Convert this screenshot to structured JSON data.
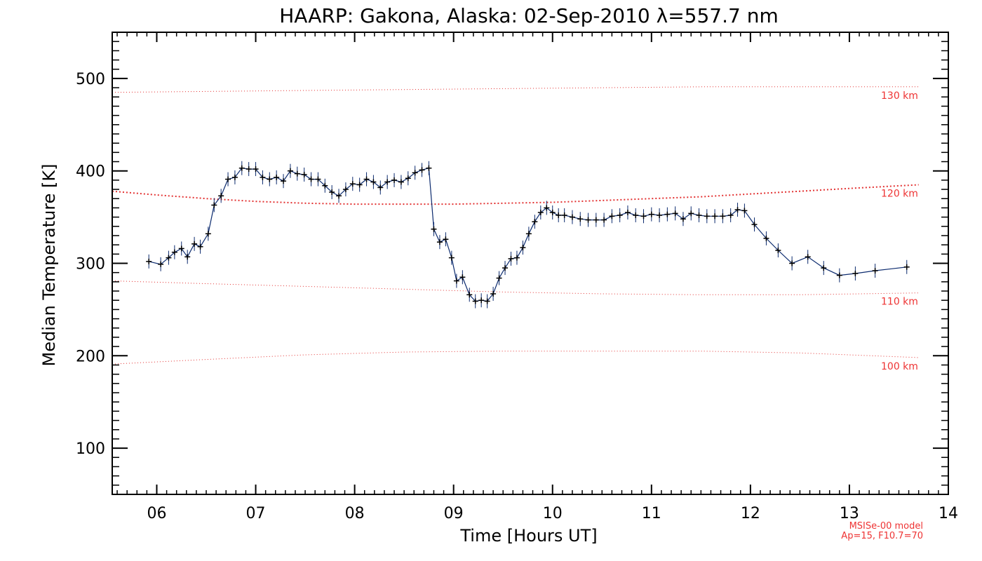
{
  "chart_data": {
    "type": "line",
    "title": "HAARP: Gakona,  Alaska: 02-Sep-2010 λ=557.7 nm",
    "xlabel": "Time [Hours UT]",
    "ylabel": "Median Temperature [K]",
    "xlim": [
      5.55,
      14.0
    ],
    "ylim": [
      50,
      550
    ],
    "x_ticks": [
      6,
      7,
      8,
      9,
      10,
      11,
      12,
      13,
      14
    ],
    "x_tick_labels": [
      "06",
      "07",
      "08",
      "09",
      "10",
      "11",
      "12",
      "13",
      "14"
    ],
    "y_ticks": [
      100,
      200,
      300,
      400,
      500
    ],
    "y_tick_labels": [
      "100",
      "200",
      "300",
      "400",
      "500"
    ],
    "grid": false,
    "colors": {
      "series": "#0b2a6e",
      "marker": "#000000",
      "model": "#e33333"
    },
    "series": [
      {
        "x": [
          5.92,
          6.04,
          6.12,
          6.18,
          6.25,
          6.31,
          6.38,
          6.44,
          6.52,
          6.58,
          6.65,
          6.72,
          6.79,
          6.86,
          6.93,
          7.0,
          7.07,
          7.14,
          7.21,
          7.28,
          7.35,
          7.42,
          7.49,
          7.56,
          7.63,
          7.7,
          7.77,
          7.84,
          7.91,
          7.98,
          8.05,
          8.12,
          8.19,
          8.26,
          8.33,
          8.4,
          8.47,
          8.54,
          8.61,
          8.68,
          8.75,
          8.8,
          8.86,
          8.92,
          8.98,
          9.03,
          9.09,
          9.16,
          9.22,
          9.28,
          9.34,
          9.4,
          9.46,
          9.52,
          9.58,
          9.64,
          9.7,
          9.76,
          9.82,
          9.88,
          9.94,
          10.0,
          10.06,
          10.12,
          10.2,
          10.28,
          10.36,
          10.44,
          10.52,
          10.6,
          10.68,
          10.76,
          10.84,
          10.92,
          11.0,
          11.08,
          11.16,
          11.24,
          11.32,
          11.4,
          11.48,
          11.56,
          11.64,
          11.72,
          11.8,
          11.87,
          11.94,
          12.04,
          12.16,
          12.28,
          12.42,
          12.58,
          12.74,
          12.9,
          13.06,
          13.26,
          13.58
        ],
        "y": [
          302,
          299,
          306,
          312,
          316,
          307,
          321,
          318,
          332,
          363,
          373,
          391,
          393,
          403,
          402,
          402,
          393,
          391,
          393,
          389,
          400,
          397,
          396,
          391,
          391,
          384,
          377,
          373,
          380,
          386,
          385,
          391,
          388,
          382,
          388,
          390,
          388,
          392,
          398,
          401,
          403,
          337,
          323,
          326,
          306,
          281,
          285,
          266,
          259,
          260,
          259,
          267,
          284,
          295,
          305,
          306,
          317,
          332,
          345,
          355,
          360,
          355,
          352,
          352,
          350,
          348,
          347,
          347,
          347,
          351,
          352,
          355,
          352,
          351,
          353,
          352,
          353,
          354,
          348,
          354,
          352,
          351,
          351,
          351,
          352,
          358,
          357,
          342,
          327,
          314,
          300,
          307,
          295,
          287,
          289,
          292,
          296
        ]
      }
    ],
    "model_curves": [
      {
        "label": "130 km",
        "x": [
          5.55,
          6.5,
          7.5,
          8.5,
          9.5,
          10.5,
          11.5,
          12.5,
          13.7
        ],
        "y": [
          485,
          486,
          487,
          488,
          489,
          490,
          491,
          491,
          491
        ]
      },
      {
        "label": "120 km",
        "x": [
          5.55,
          6.0,
          6.5,
          7.0,
          7.5,
          8.0,
          8.5,
          9.0,
          9.5,
          10.0,
          10.5,
          11.0,
          11.5,
          12.0,
          12.5,
          13.0,
          13.7
        ],
        "y": [
          378,
          374,
          370,
          367,
          365,
          364,
          364,
          364,
          365,
          366,
          368,
          370,
          372,
          375,
          378,
          381,
          385
        ]
      },
      {
        "label": "110 km",
        "x": [
          5.55,
          6.5,
          7.5,
          8.5,
          9.5,
          10.5,
          11.5,
          12.5,
          13.7
        ],
        "y": [
          281,
          278,
          275,
          272,
          269,
          267,
          266,
          266,
          268
        ]
      },
      {
        "label": "100 km",
        "x": [
          5.55,
          6.5,
          7.5,
          8.5,
          9.5,
          10.5,
          11.5,
          12.5,
          13.7
        ],
        "y": [
          191,
          196,
          201,
          204,
          205,
          205,
          205,
          203,
          198
        ]
      }
    ],
    "model_note": [
      "MSISe-00 model",
      "Ap=15, F10.7=70"
    ]
  }
}
